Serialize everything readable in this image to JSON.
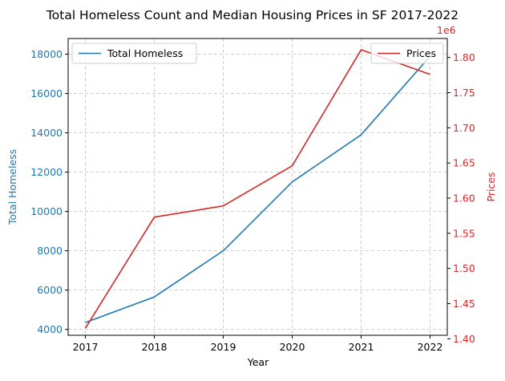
{
  "chart_data": {
    "type": "line",
    "title": "Total Homeless Count and Median Housing Prices in SF 2017-2022",
    "xlabel": "Year",
    "x": [
      2017,
      2018,
      2019,
      2020,
      2021,
      2022
    ],
    "x_tick_labels": [
      "2017",
      "2018",
      "2019",
      "2020",
      "2021",
      "2022"
    ],
    "grid": true,
    "series": [
      {
        "name": "Total Homeless",
        "axis": "left",
        "color": "#1f77b4",
        "values": [
          4350,
          5650,
          8000,
          11500,
          13900,
          17900
        ],
        "legend_position": "upper-left"
      },
      {
        "name": "Prices",
        "axis": "right",
        "color": "#d62728",
        "values": [
          1415000,
          1573000,
          1589000,
          1646000,
          1811000,
          1776000
        ],
        "legend_position": "upper-right"
      }
    ],
    "y_left": {
      "label": "Total Homeless",
      "color": "#1f77b4",
      "ylim": [
        3700,
        18800
      ],
      "ticks": [
        4000,
        6000,
        8000,
        10000,
        12000,
        14000,
        16000,
        18000
      ],
      "tick_labels": [
        "4000",
        "6000",
        "8000",
        "10000",
        "12000",
        "14000",
        "16000",
        "18000"
      ]
    },
    "y_right": {
      "label": "Prices",
      "color": "#d62728",
      "offset_label": "1e6",
      "ylim": [
        1.405,
        1.827
      ],
      "ticks": [
        1.4,
        1.45,
        1.5,
        1.55,
        1.6,
        1.65,
        1.7,
        1.75,
        1.8
      ],
      "tick_labels": [
        "1.40",
        "1.45",
        "1.50",
        "1.55",
        "1.60",
        "1.65",
        "1.70",
        "1.75",
        "1.80"
      ],
      "scale": 1000000
    }
  }
}
